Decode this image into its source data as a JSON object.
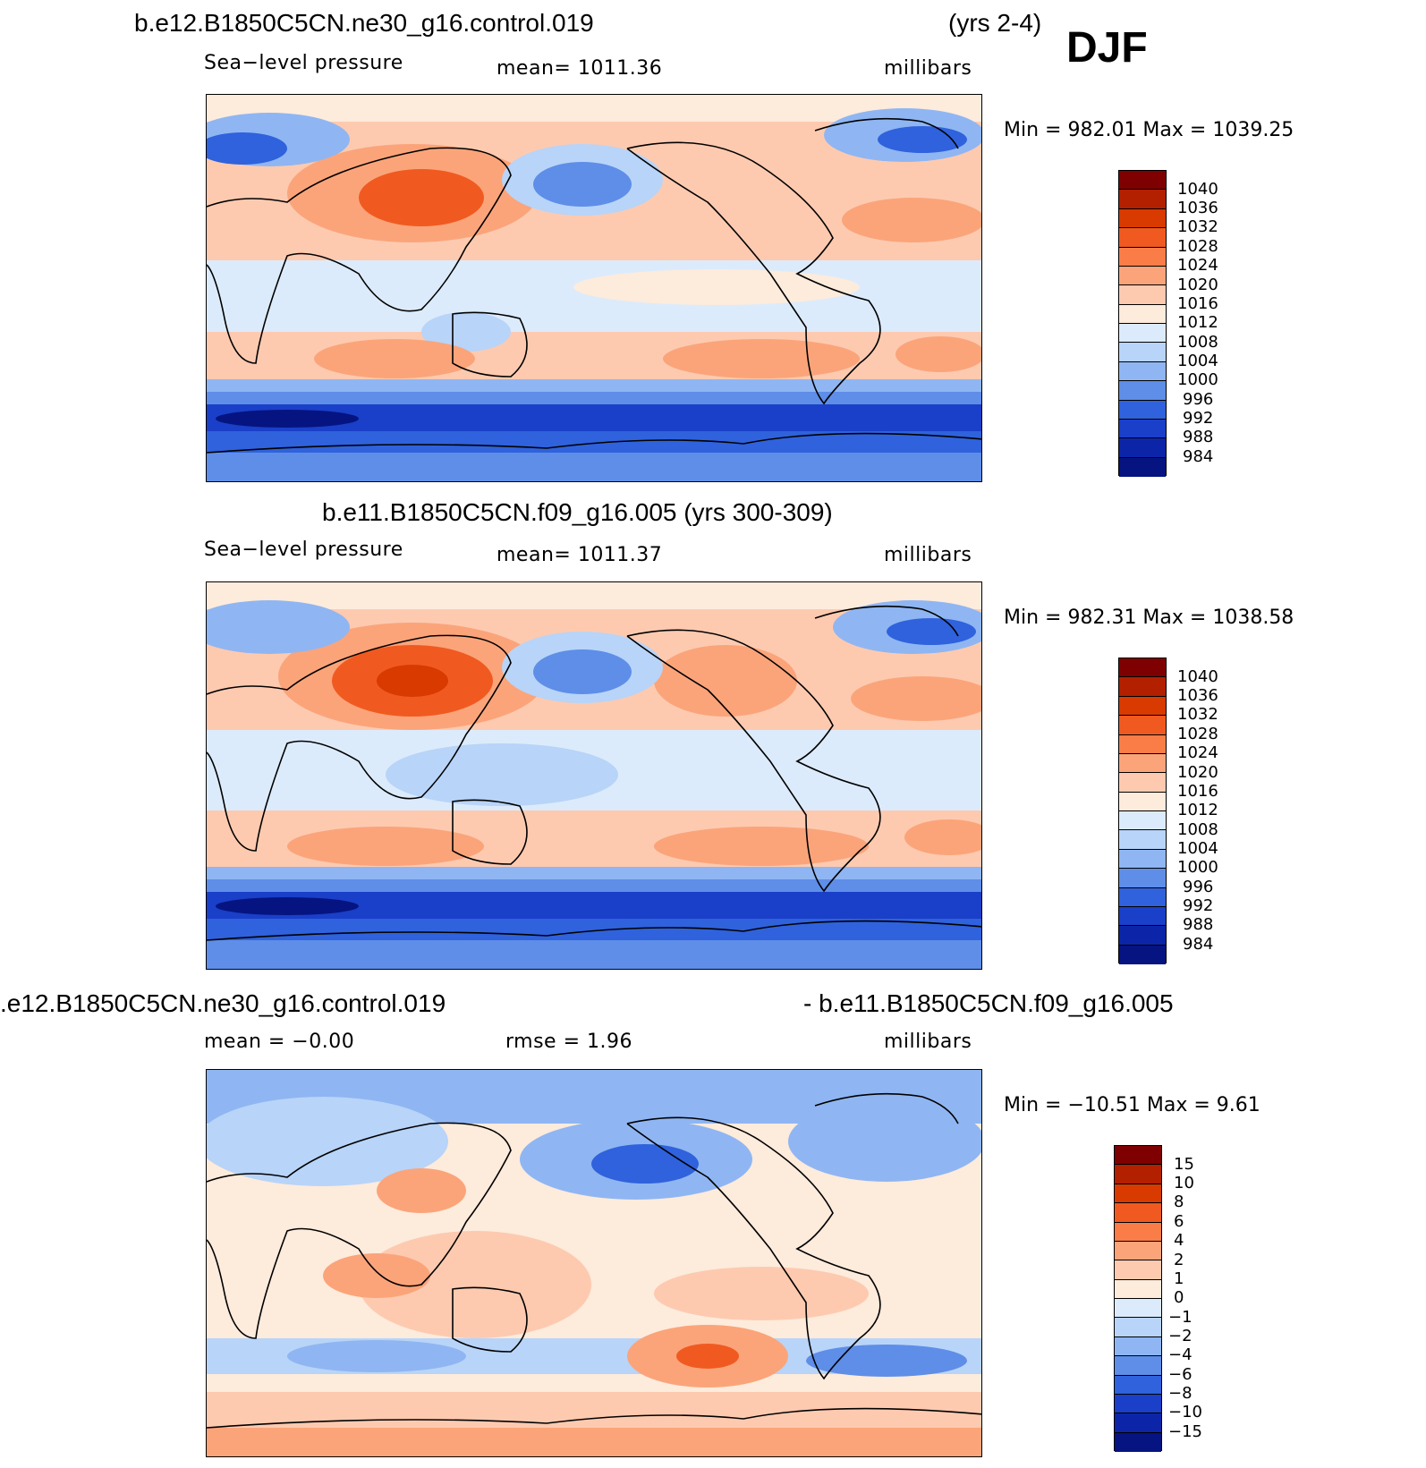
{
  "season": "DJF",
  "panels": [
    {
      "title_left": "b.e12.B1850C5CN.ne30_g16.control.019",
      "title_right": "(yrs 2-4)",
      "sub_left": "Sea−level pressure",
      "sub_mid": "mean=  1011.36",
      "sub_right": "millibars",
      "minmax": "Min  =  982.01  Max  =  1039.25",
      "levels": [
        "1040",
        "1036",
        "1032",
        "1028",
        "1024",
        "1020",
        "1016",
        "1012",
        "1008",
        "1004",
        "1000",
        "996",
        "992",
        "988",
        "984"
      ]
    },
    {
      "title_left": "b.e11.B1850C5CN.f09_g16.005 (yrs 300-309)",
      "title_right": "",
      "sub_left": "Sea−level pressure",
      "sub_mid": "mean=  1011.37",
      "sub_right": "millibars",
      "minmax": "Min  =  982.31  Max  =  1038.58",
      "levels": [
        "1040",
        "1036",
        "1032",
        "1028",
        "1024",
        "1020",
        "1016",
        "1012",
        "1008",
        "1004",
        "1000",
        "996",
        "992",
        "988",
        "984"
      ]
    },
    {
      "title_left": ".e12.B1850C5CN.ne30_g16.control.019",
      "title_right": "- b.e11.B1850C5CN.f09_g16.005",
      "sub_left": "mean  =     −0.00",
      "sub_mid": "rmse  =      1.96",
      "sub_right": "millibars",
      "minmax": "Min  =  −10.51  Max  =     9.61",
      "levels": [
        "15",
        "10",
        "8",
        "6",
        "4",
        "2",
        "1",
        "0",
        "−1",
        "−2",
        "−4",
        "−6",
        "−8",
        "−10",
        "−15"
      ]
    }
  ],
  "colorbar_colors": [
    "#7f0000",
    "#b22000",
    "#d83a00",
    "#f05a20",
    "#fa7d48",
    "#fba47a",
    "#fdcab0",
    "#fdebdc",
    "#dcebfb",
    "#b8d4f8",
    "#8fb6f2",
    "#5e8ee8",
    "#2f62dc",
    "#1a3fc8",
    "#0c25a8",
    "#051480"
  ]
}
